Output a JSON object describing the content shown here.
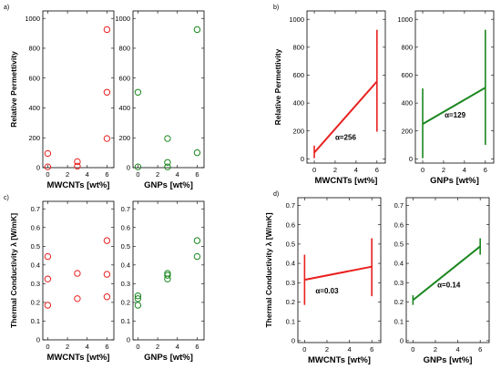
{
  "colors": {
    "mwcnt": "#e8201f",
    "gnp": "#1a861f",
    "axis": "#000000"
  },
  "chart_data": [
    {
      "panel": "a",
      "type": "scatter",
      "panel_label": "a)",
      "xlabel": "MWCNTs [wt%]",
      "ylabel": "Relative Permettivity",
      "xlim": [
        -0.5,
        6.7
      ],
      "ylim": [
        0,
        1050
      ],
      "xticks": [
        0,
        2,
        4,
        6
      ],
      "yticks": [
        0,
        200,
        400,
        600,
        800,
        1000
      ],
      "series": [
        {
          "color_key": "mwcnt",
          "x": [
            0,
            0,
            3,
            3,
            6,
            6,
            6
          ],
          "y": [
            5,
            95,
            10,
            40,
            925,
            505,
            195
          ]
        }
      ]
    },
    {
      "panel": "a",
      "type": "scatter",
      "panel_label": "",
      "xlabel": "GNPs [wt%]",
      "ylabel": "",
      "xlim": [
        -0.5,
        6.7
      ],
      "ylim": [
        0,
        1050
      ],
      "xticks": [
        0,
        2,
        4,
        6
      ],
      "yticks": [
        0,
        200,
        400,
        600,
        800,
        1000
      ],
      "series": [
        {
          "color_key": "gnp",
          "x": [
            0,
            0,
            3,
            3,
            3,
            6,
            6
          ],
          "y": [
            5,
            505,
            5,
            35,
            195,
            925,
            100
          ]
        }
      ]
    },
    {
      "panel": "b",
      "type": "line",
      "panel_label": "b)",
      "xlabel": "MWCNTs [wt%]",
      "ylabel": "Relative Permettivity",
      "xlim": [
        -0.7,
        6.8
      ],
      "ylim": [
        -30,
        1060
      ],
      "xticks": [
        0,
        2,
        4,
        6
      ],
      "yticks": [
        0,
        200,
        400,
        600,
        800,
        1000
      ],
      "series": [
        {
          "color_key": "mwcnt",
          "x": [
            0,
            6
          ],
          "y": [
            45,
            555
          ],
          "errors": [
            [
              5,
              95
            ],
            [
              195,
              925
            ]
          ]
        }
      ],
      "annotation": {
        "text": "α=256",
        "x": 3.0,
        "y": 135
      }
    },
    {
      "panel": "b",
      "type": "line",
      "panel_label": "",
      "xlabel": "GNPs [wt%]",
      "ylabel": "",
      "xlim": [
        -0.7,
        6.8
      ],
      "ylim": [
        -30,
        1060
      ],
      "xticks": [
        0,
        2,
        4,
        6
      ],
      "yticks": [
        0,
        200,
        400,
        600,
        800,
        1000
      ],
      "series": [
        {
          "color_key": "gnp",
          "x": [
            0,
            6
          ],
          "y": [
            250,
            510
          ],
          "errors": [
            [
              5,
              505
            ],
            [
              100,
              925
            ]
          ]
        }
      ],
      "annotation": {
        "text": "α=129",
        "x": 3.1,
        "y": 295
      }
    },
    {
      "panel": "c",
      "type": "scatter",
      "panel_label": "c)",
      "xlabel": "MWCNTs [wt%]",
      "ylabel": "Thermal Conductivity λ [W/mK]",
      "xlim": [
        -0.5,
        6.7
      ],
      "ylim": [
        0,
        0.74
      ],
      "xticks": [
        0,
        2,
        4,
        6
      ],
      "yticks": [
        0,
        0.1,
        0.2,
        0.3,
        0.4,
        0.5,
        0.6,
        0.7
      ],
      "series": [
        {
          "color_key": "mwcnt",
          "x": [
            0,
            0,
            0,
            3,
            3,
            6,
            6,
            6
          ],
          "y": [
            0.445,
            0.325,
            0.185,
            0.355,
            0.22,
            0.53,
            0.35,
            0.23
          ]
        }
      ]
    },
    {
      "panel": "c",
      "type": "scatter",
      "panel_label": "",
      "xlabel": "GNPs [wt%]",
      "ylabel": "",
      "xlim": [
        -0.5,
        6.7
      ],
      "ylim": [
        0,
        0.74
      ],
      "xticks": [
        0,
        2,
        4,
        6
      ],
      "yticks": [
        0,
        0.1,
        0.2,
        0.3,
        0.4,
        0.5,
        0.6,
        0.7
      ],
      "series": [
        {
          "color_key": "gnp",
          "x": [
            0,
            0,
            0,
            3,
            3,
            3,
            6,
            6
          ],
          "y": [
            0.235,
            0.22,
            0.185,
            0.355,
            0.345,
            0.325,
            0.53,
            0.445
          ]
        }
      ]
    },
    {
      "panel": "d",
      "type": "line",
      "panel_label": "d)",
      "xlabel": "MWCNTs [wt%]",
      "ylabel": "Thermal Conductivity λ [W/mK]",
      "xlim": [
        -0.6,
        6.8
      ],
      "ylim": [
        -0.01,
        0.74
      ],
      "xticks": [
        0,
        2,
        4,
        6
      ],
      "yticks": [
        0,
        0.1,
        0.2,
        0.3,
        0.4,
        0.5,
        0.6,
        0.7
      ],
      "series": [
        {
          "color_key": "mwcnt",
          "x": [
            0,
            6
          ],
          "y": [
            0.315,
            0.383
          ],
          "errors": [
            [
              0.185,
              0.445
            ],
            [
              0.23,
              0.53
            ]
          ]
        }
      ],
      "annotation": {
        "text": "α=0.03",
        "x": 2.0,
        "y": 0.245
      }
    },
    {
      "panel": "d",
      "type": "line",
      "panel_label": "",
      "xlabel": "GNPs [wt%]",
      "ylabel": "",
      "xlim": [
        -0.6,
        6.8
      ],
      "ylim": [
        -0.01,
        0.74
      ],
      "xticks": [
        0,
        2,
        4,
        6
      ],
      "yticks": [
        0,
        0.1,
        0.2,
        0.3,
        0.4,
        0.5,
        0.6,
        0.7
      ],
      "series": [
        {
          "color_key": "gnp",
          "x": [
            0,
            6
          ],
          "y": [
            0.21,
            0.488
          ],
          "errors": [
            [
              0.185,
              0.235
            ],
            [
              0.445,
              0.53
            ]
          ]
        }
      ],
      "annotation": {
        "text": "α=0.14",
        "x": 3.2,
        "y": 0.275
      }
    }
  ]
}
